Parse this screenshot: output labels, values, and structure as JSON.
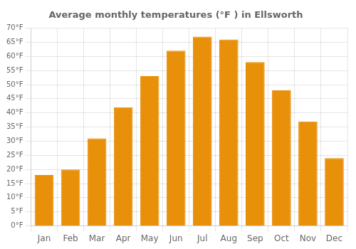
{
  "chart_data": {
    "type": "bar",
    "title": "Average monthly temperatures (°F ) in Ellsworth",
    "categories": [
      "Jan",
      "Feb",
      "Mar",
      "Apr",
      "May",
      "Jun",
      "Jul",
      "Aug",
      "Sep",
      "Oct",
      "Nov",
      "Dec"
    ],
    "values": [
      18,
      20,
      31,
      42,
      53,
      62,
      67,
      66,
      58,
      48,
      37,
      24
    ],
    "color": "#E8900A",
    "ylim": [
      0,
      70
    ],
    "yticks": [
      {
        "value": 0,
        "label": "0°F"
      },
      {
        "value": 5,
        "label": "5°F"
      },
      {
        "value": 10,
        "label": "10°F"
      },
      {
        "value": 15,
        "label": "15°F"
      },
      {
        "value": 20,
        "label": "20°F"
      },
      {
        "value": 25,
        "label": "25°F"
      },
      {
        "value": 30,
        "label": "30°F"
      },
      {
        "value": 35,
        "label": "35°F"
      },
      {
        "value": 40,
        "label": "40°F"
      },
      {
        "value": 45,
        "label": "45°F"
      },
      {
        "value": 50,
        "label": "50°F"
      },
      {
        "value": 55,
        "label": "55°F"
      },
      {
        "value": 60,
        "label": "60°F"
      },
      {
        "value": 65,
        "label": "65°F"
      },
      {
        "value": 70,
        "label": "70°F"
      }
    ],
    "grid": true
  }
}
